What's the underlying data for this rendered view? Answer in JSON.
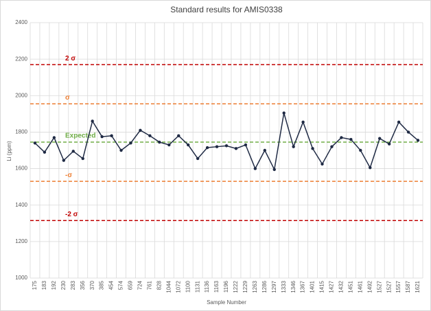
{
  "chart_data": {
    "type": "line",
    "title": "Standard results for AMIS0338",
    "x_label": "Sample Number",
    "y_label": "Li (ppm)",
    "categories": [
      "175",
      "183",
      "192",
      "230",
      "283",
      "356",
      "370",
      "385",
      "454",
      "574",
      "659",
      "724",
      "761",
      "828",
      "1044",
      "1072",
      "1100",
      "1131",
      "1136",
      "1163",
      "1196",
      "1222",
      "1229",
      "1263",
      "1286",
      "1297",
      "1333",
      "1346",
      "1367",
      "1401",
      "1415",
      "1427",
      "1432",
      "1451",
      "1461",
      "1492",
      "1527",
      "1527",
      "1557",
      "1587",
      "1621"
    ],
    "series": [
      {
        "name": "Li",
        "color": "#1f2a44",
        "values": [
          1740,
          1690,
          1770,
          1645,
          1695,
          1655,
          1860,
          1775,
          1780,
          1700,
          1740,
          1810,
          1780,
          1745,
          1730,
          1780,
          1730,
          1655,
          1715,
          1720,
          1725,
          1710,
          1730,
          1600,
          1700,
          1595,
          1905,
          1720,
          1855,
          1710,
          1625,
          1720,
          1770,
          1760,
          1700,
          1605,
          1765,
          1735,
          1855,
          1800,
          1755
        ]
      }
    ],
    "reference_lines": [
      {
        "label": "2 σ",
        "value": 2170,
        "color": "#c00000"
      },
      {
        "label": "σ",
        "value": 1955,
        "color": "#ed7d31"
      },
      {
        "label": "Expected",
        "value": 1745,
        "color": "#70ad47"
      },
      {
        "label": "-σ",
        "value": 1530,
        "color": "#ed7d31"
      },
      {
        "label": "-2 σ",
        "value": 1315,
        "color": "#c00000"
      }
    ],
    "ylim": [
      1000,
      2400
    ],
    "yticks": [
      1000,
      1200,
      1400,
      1600,
      1800,
      2000,
      2200,
      2400
    ],
    "grid": true
  }
}
